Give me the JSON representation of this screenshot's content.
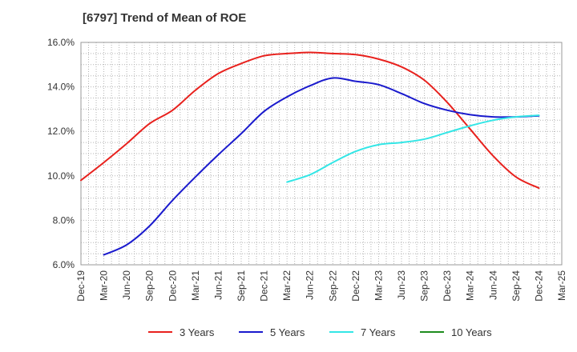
{
  "chart_data": {
    "type": "line",
    "title": "[6797]  Trend of Mean of ROE",
    "xlabel": "",
    "ylabel": "",
    "x_ticks": [
      "Dec-19",
      "Mar-20",
      "Jun-20",
      "Sep-20",
      "Dec-20",
      "Mar-21",
      "Jun-21",
      "Sep-21",
      "Dec-21",
      "Mar-22",
      "Jun-22",
      "Sep-22",
      "Dec-22",
      "Mar-23",
      "Jun-23",
      "Sep-23",
      "Dec-23",
      "Mar-24",
      "Jun-24",
      "Sep-24",
      "Dec-24",
      "Mar-25"
    ],
    "y_ticks": [
      "6.0%",
      "8.0%",
      "10.0%",
      "12.0%",
      "14.0%",
      "16.0%"
    ],
    "ylim": [
      6.0,
      16.0
    ],
    "grid": true,
    "legend_position": "bottom",
    "series": [
      {
        "name": "3 Years",
        "color": "#e8211d",
        "points": [
          {
            "x": "Dec-19",
            "y": 9.8
          },
          {
            "x": "Mar-20",
            "y": 10.6
          },
          {
            "x": "Jun-20",
            "y": 11.45
          },
          {
            "x": "Sep-20",
            "y": 12.35
          },
          {
            "x": "Dec-20",
            "y": 12.95
          },
          {
            "x": "Mar-21",
            "y": 13.85
          },
          {
            "x": "Jun-21",
            "y": 14.6
          },
          {
            "x": "Sep-21",
            "y": 15.05
          },
          {
            "x": "Dec-21",
            "y": 15.4
          },
          {
            "x": "Mar-22",
            "y": 15.5
          },
          {
            "x": "Jun-22",
            "y": 15.55
          },
          {
            "x": "Sep-22",
            "y": 15.5
          },
          {
            "x": "Dec-22",
            "y": 15.45
          },
          {
            "x": "Mar-23",
            "y": 15.25
          },
          {
            "x": "Jun-23",
            "y": 14.9
          },
          {
            "x": "Sep-23",
            "y": 14.3
          },
          {
            "x": "Dec-23",
            "y": 13.3
          },
          {
            "x": "Mar-24",
            "y": 12.1
          },
          {
            "x": "Jun-24",
            "y": 10.9
          },
          {
            "x": "Sep-24",
            "y": 9.95
          },
          {
            "x": "Dec-24",
            "y": 9.45
          }
        ]
      },
      {
        "name": "5 Years",
        "color": "#1a1acd",
        "points": [
          {
            "x": "Mar-20",
            "y": 6.45
          },
          {
            "x": "Jun-20",
            "y": 6.9
          },
          {
            "x": "Sep-20",
            "y": 7.75
          },
          {
            "x": "Dec-20",
            "y": 8.9
          },
          {
            "x": "Mar-21",
            "y": 9.95
          },
          {
            "x": "Jun-21",
            "y": 10.95
          },
          {
            "x": "Sep-21",
            "y": 11.9
          },
          {
            "x": "Dec-21",
            "y": 12.9
          },
          {
            "x": "Mar-22",
            "y": 13.55
          },
          {
            "x": "Jun-22",
            "y": 14.05
          },
          {
            "x": "Sep-22",
            "y": 14.4
          },
          {
            "x": "Dec-22",
            "y": 14.25
          },
          {
            "x": "Mar-23",
            "y": 14.1
          },
          {
            "x": "Jun-23",
            "y": 13.7
          },
          {
            "x": "Sep-23",
            "y": 13.25
          },
          {
            "x": "Dec-23",
            "y": 12.95
          },
          {
            "x": "Mar-24",
            "y": 12.75
          },
          {
            "x": "Jun-24",
            "y": 12.65
          },
          {
            "x": "Sep-24",
            "y": 12.65
          },
          {
            "x": "Dec-24",
            "y": 12.7
          }
        ]
      },
      {
        "name": "7 Years",
        "color": "#33e6e6",
        "points": [
          {
            "x": "Mar-22",
            "y": 9.72
          },
          {
            "x": "Jun-22",
            "y": 10.05
          },
          {
            "x": "Sep-22",
            "y": 10.6
          },
          {
            "x": "Dec-22",
            "y": 11.1
          },
          {
            "x": "Mar-23",
            "y": 11.4
          },
          {
            "x": "Jun-23",
            "y": 11.5
          },
          {
            "x": "Sep-23",
            "y": 11.65
          },
          {
            "x": "Dec-23",
            "y": 11.95
          },
          {
            "x": "Mar-24",
            "y": 12.25
          },
          {
            "x": "Jun-24",
            "y": 12.5
          },
          {
            "x": "Sep-24",
            "y": 12.65
          },
          {
            "x": "Dec-24",
            "y": 12.72
          }
        ]
      },
      {
        "name": "10 Years",
        "color": "#1e8c1e",
        "points": []
      }
    ]
  }
}
